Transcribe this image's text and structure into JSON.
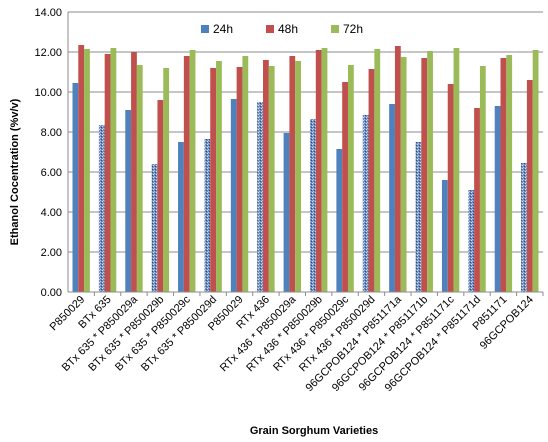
{
  "chart_data": {
    "type": "bar",
    "title": "",
    "xlabel": "Grain Sorghum Varieties",
    "ylabel": "Ethanol Cocentration (%v/v)",
    "ylim": [
      0,
      14
    ],
    "yticks": [
      "0.00",
      "2.00",
      "4.00",
      "6.00",
      "8.00",
      "10.00",
      "12.00",
      "14.00"
    ],
    "grid": true,
    "legend_position": "top-center",
    "categories": [
      "P850029",
      "BTx 635",
      "BTx 635 * P850029a",
      "BTx 635 * P850029b",
      "BTx 635 * P850029c",
      "BTx 635 * P850029d",
      "P850029",
      "RTx 436",
      "RTx 436 * P850029a",
      "RTx 436 * P850029b",
      "RTx 436 * P850029c",
      "RTx 436 * P850029d",
      "96GCPOB124 * P851171a",
      "96GCPOB124 * P851171b",
      "96GCPOB124 * P851171c",
      "96GCPOB124 * P851171d",
      "P851171",
      "96GCPOB124"
    ],
    "series": [
      {
        "name": "24h",
        "color": "#4f81bd",
        "values": [
          10.45,
          8.35,
          9.1,
          6.4,
          7.5,
          7.65,
          9.65,
          9.5,
          7.95,
          8.65,
          7.15,
          8.85,
          9.4,
          7.5,
          5.6,
          5.1,
          9.3,
          6.45
        ]
      },
      {
        "name": "48h",
        "color": "#c0504d",
        "values": [
          12.35,
          11.9,
          12.0,
          9.6,
          11.8,
          11.2,
          11.25,
          11.6,
          11.8,
          12.1,
          10.5,
          11.15,
          12.3,
          11.7,
          10.4,
          9.2,
          11.7,
          10.6
        ]
      },
      {
        "name": "72h",
        "color": "#9bbb59",
        "values": [
          12.15,
          12.2,
          11.35,
          11.2,
          12.1,
          11.55,
          11.8,
          11.3,
          11.55,
          12.2,
          11.35,
          12.15,
          11.75,
          12.05,
          12.2,
          11.3,
          11.85,
          12.1
        ]
      }
    ]
  }
}
